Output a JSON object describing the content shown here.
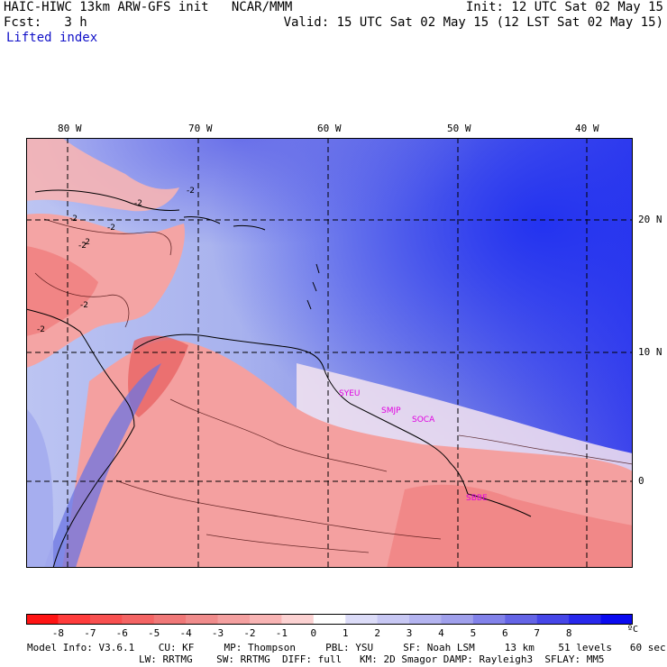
{
  "header": {
    "title": "HAIC-HIWC 13km ARW-GFS init   NCAR/MMM",
    "init": "Init: 12 UTC Sat 02 May 15",
    "fcst": "Fcst:   3 h",
    "valid": "Valid: 15 UTC Sat 02 May 15 (12 LST Sat 02 May 15)",
    "field": "Lifted index"
  },
  "map": {
    "longitude_labels": [
      "80 W",
      "70 W",
      "60 W",
      "50 W",
      "40 W"
    ],
    "latitude_labels": [
      "20 N",
      "10 N",
      "0"
    ],
    "contour_labels": [
      "-2",
      "-2",
      "-2",
      "-2",
      "-2",
      "-2",
      "-2",
      "-2"
    ],
    "stations": [
      "SYEU",
      "SMJP",
      "SOCA",
      "SBBE"
    ],
    "colors": {
      "neg_strong": "#ff3232",
      "neg_weak": "#f8b8b8",
      "neutral": "#ffffff",
      "pos_weak": "#b4b4f0",
      "pos_strong": "#1e1ee6",
      "station": "#e000e0"
    }
  },
  "colorbar": {
    "labels": [
      "-8",
      "-7",
      "-6",
      "-5",
      "-4",
      "-3",
      "-2",
      "-1",
      "0",
      "1",
      "2",
      "3",
      "4",
      "5",
      "6",
      "7",
      "8"
    ],
    "unit": "ºC",
    "colors": [
      "#ff1414",
      "#ff3c3c",
      "#f85050",
      "#f46464",
      "#f07878",
      "#f08c8c",
      "#f4a0a0",
      "#f8b4b4",
      "#fcd2d2",
      "#ffffff",
      "#dcdcf8",
      "#c8c8f4",
      "#b4b4f0",
      "#a0a0ec",
      "#8282ea",
      "#6464e6",
      "#4646e8",
      "#2828ec",
      "#0a0af0"
    ]
  },
  "footer": {
    "line1": "Model Info: V3.6.1    CU: KF     MP: Thompson     PBL: YSU     SF: Noah LSM     13 km    51 levels   60 sec",
    "line2": "LW: RRTMG    SW: RRTMG  DIFF: full   KM: 2D Smagor DAMP: Rayleigh3  SFLAY: MM5"
  }
}
